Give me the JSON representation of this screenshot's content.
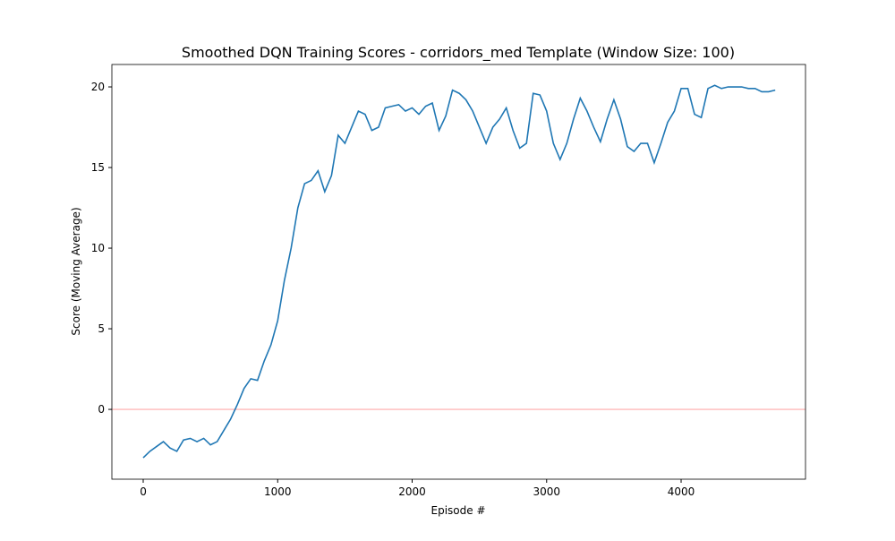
{
  "chart_data": {
    "type": "line",
    "title": "Smoothed DQN Training Scores - corridors_med Template (Window Size: 100)",
    "xlabel": "Episode #",
    "ylabel": "Score (Moving Average)",
    "x": [
      0,
      50,
      100,
      150,
      200,
      250,
      300,
      350,
      400,
      450,
      500,
      550,
      600,
      650,
      700,
      750,
      800,
      850,
      900,
      950,
      1000,
      1050,
      1100,
      1150,
      1200,
      1250,
      1300,
      1350,
      1400,
      1450,
      1500,
      1550,
      1600,
      1650,
      1700,
      1750,
      1800,
      1850,
      1900,
      1950,
      2000,
      2050,
      2100,
      2150,
      2200,
      2250,
      2300,
      2350,
      2400,
      2450,
      2500,
      2550,
      2600,
      2650,
      2700,
      2750,
      2800,
      2850,
      2900,
      2950,
      3000,
      3050,
      3100,
      3150,
      3200,
      3250,
      3300,
      3350,
      3400,
      3450,
      3500,
      3550,
      3600,
      3650,
      3700,
      3750,
      3800,
      3850,
      3900,
      3950,
      4000,
      4050,
      4100,
      4150,
      4200,
      4250,
      4300,
      4350,
      4400,
      4450,
      4500,
      4550,
      4600,
      4650,
      4700
    ],
    "series": [
      {
        "name": "Score",
        "color": "#1f77b4",
        "values": [
          -3.0,
          -2.6,
          -2.3,
          -2.0,
          -2.4,
          -2.6,
          -1.9,
          -1.8,
          -2.0,
          -1.8,
          -2.2,
          -2.0,
          -1.3,
          -0.6,
          0.3,
          1.3,
          1.9,
          1.8,
          3.0,
          4.0,
          5.5,
          8.0,
          10.0,
          12.5,
          14.0,
          14.2,
          14.8,
          13.5,
          14.5,
          17.0,
          16.5,
          17.5,
          18.5,
          18.3,
          17.3,
          17.5,
          18.7,
          18.8,
          18.9,
          18.5,
          18.7,
          18.3,
          18.8,
          19.0,
          17.3,
          18.2,
          19.8,
          19.6,
          19.2,
          18.5,
          17.5,
          16.5,
          17.5,
          18.0,
          18.7,
          17.3,
          16.2,
          16.5,
          19.6,
          19.5,
          18.5,
          16.5,
          15.5,
          16.5,
          18.0,
          19.3,
          18.5,
          17.5,
          16.6,
          18.0,
          19.2,
          18.0,
          16.3,
          16.0,
          16.5,
          16.5,
          15.3,
          16.5,
          17.8,
          18.5,
          19.9,
          19.9,
          18.3,
          18.1,
          19.9,
          20.1,
          19.9,
          20.0,
          20.0,
          20.0,
          19.9,
          19.9,
          19.7,
          19.7,
          19.8
        ]
      }
    ],
    "hline": {
      "value": 0,
      "color": "#ffaaaa"
    },
    "xlim": [
      -233,
      4925
    ],
    "ylim": [
      -4.33,
      21.39
    ],
    "xticks": [
      0,
      1000,
      2000,
      3000,
      4000
    ],
    "yticks": [
      0,
      5,
      10,
      15,
      20
    ]
  }
}
